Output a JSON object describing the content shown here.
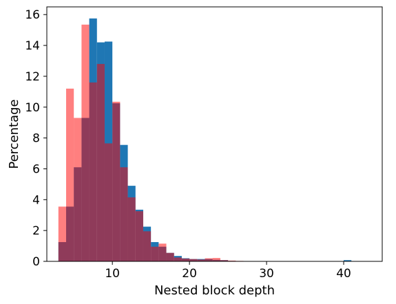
{
  "chart_data": {
    "type": "bar",
    "title": "",
    "xlabel": "Nested block depth",
    "ylabel": "Percentage",
    "xlim": [
      1.5,
      45.0
    ],
    "ylim": [
      0,
      16.5
    ],
    "xticks": [
      10,
      20,
      30,
      40
    ],
    "yticks": [
      0,
      2,
      4,
      6,
      8,
      10,
      12,
      14,
      16
    ],
    "grid": false,
    "legend": "none",
    "bin_width": 1,
    "series": [
      {
        "color": "#1f77b4",
        "opacity": 1.0,
        "bins": [
          [
            3,
            1.25
          ],
          [
            4,
            3.55
          ],
          [
            5,
            6.1
          ],
          [
            6,
            9.3
          ],
          [
            7,
            15.75
          ],
          [
            8,
            14.2
          ],
          [
            9,
            14.25
          ],
          [
            10,
            10.25
          ],
          [
            11,
            7.55
          ],
          [
            12,
            4.9
          ],
          [
            13,
            3.35
          ],
          [
            14,
            2.25
          ],
          [
            15,
            1.25
          ],
          [
            16,
            0.95
          ],
          [
            17,
            0.55
          ],
          [
            18,
            0.35
          ],
          [
            19,
            0.2
          ],
          [
            20,
            0.15
          ],
          [
            21,
            0.15
          ],
          [
            22,
            0.15
          ],
          [
            23,
            0.1
          ],
          [
            24,
            0.08
          ],
          [
            25,
            0.03
          ],
          [
            26,
            0.02
          ],
          [
            27,
            0.01
          ],
          [
            28,
            0.01
          ],
          [
            29,
            0.01
          ],
          [
            30,
            0.01
          ],
          [
            31,
            0.01
          ],
          [
            32,
            0.01
          ],
          [
            33,
            0.01
          ],
          [
            34,
            0.01
          ],
          [
            35,
            0.01
          ],
          [
            36,
            0.01
          ],
          [
            37,
            0.01
          ],
          [
            38,
            0.01
          ],
          [
            39,
            0.01
          ],
          [
            40,
            0.08
          ],
          [
            41,
            0.01
          ],
          [
            42,
            0.01
          ]
        ]
      },
      {
        "color": "#ff0000",
        "opacity": 0.5,
        "bins": [
          [
            3,
            3.55
          ],
          [
            4,
            11.2
          ],
          [
            5,
            9.3
          ],
          [
            6,
            15.35
          ],
          [
            7,
            11.6
          ],
          [
            8,
            12.8
          ],
          [
            9,
            7.65
          ],
          [
            10,
            10.35
          ],
          [
            11,
            6.1
          ],
          [
            12,
            4.15
          ],
          [
            13,
            3.25
          ],
          [
            14,
            1.95
          ],
          [
            15,
            0.95
          ],
          [
            16,
            1.15
          ],
          [
            17,
            0.55
          ],
          [
            18,
            0.25
          ],
          [
            19,
            0.18
          ],
          [
            20,
            0.15
          ],
          [
            21,
            0.12
          ],
          [
            22,
            0.2
          ],
          [
            23,
            0.22
          ],
          [
            24,
            0.08
          ],
          [
            25,
            0.05
          ],
          [
            26,
            0.03
          ],
          [
            27,
            0.02
          ],
          [
            28,
            0.02
          ],
          [
            29,
            0.02
          ],
          [
            30,
            0.01
          ],
          [
            31,
            0.01
          ],
          [
            32,
            0.01
          ]
        ]
      }
    ]
  }
}
